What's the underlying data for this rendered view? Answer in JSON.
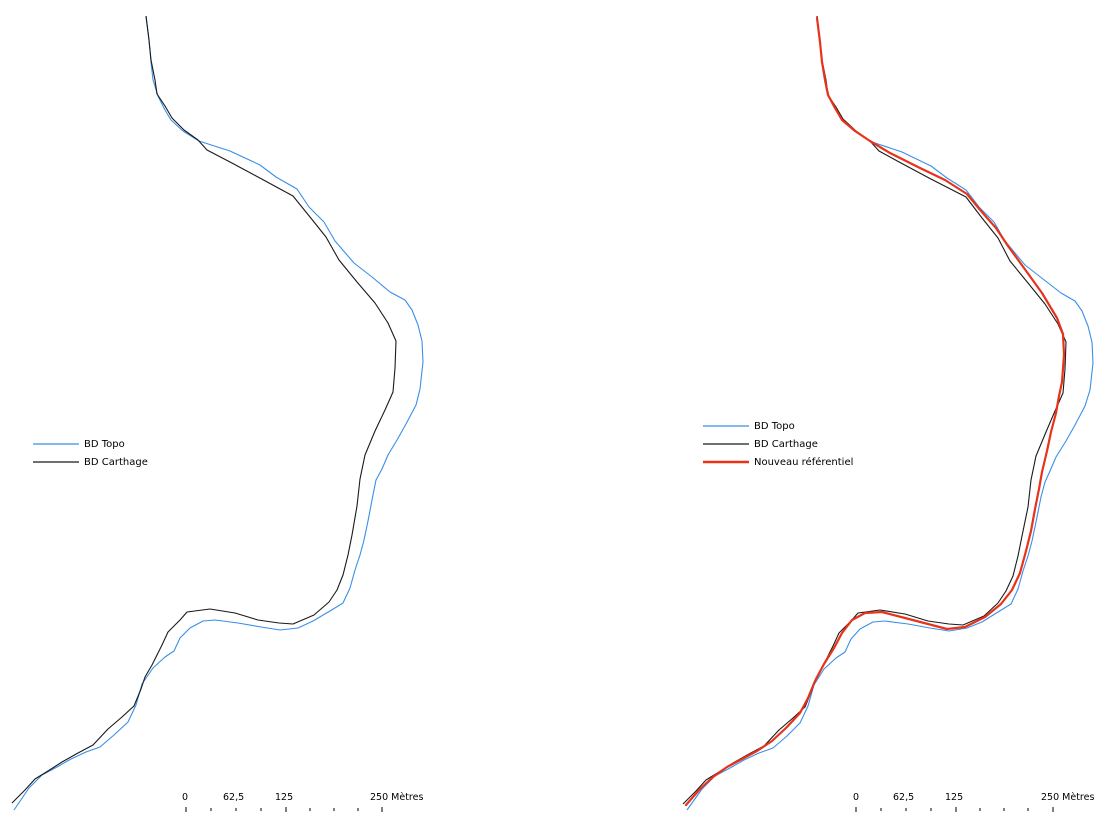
{
  "colors": {
    "bd_topo": "#3a8fe8",
    "bd_carthage": "#1a1a1a",
    "nouveau_referentiel": "#e8321a",
    "background": "#ffffff"
  },
  "panels": [
    {
      "legend": [
        {
          "label": "BD Topo",
          "color_key": "bd_topo"
        },
        {
          "label": "BD Carthage",
          "color_key": "bd_carthage"
        }
      ],
      "scale_bar": {
        "labels": [
          "0",
          "62,5",
          "125",
          "250 Mètres"
        ]
      }
    },
    {
      "legend": [
        {
          "label": "BD Topo",
          "color_key": "bd_topo"
        },
        {
          "label": "BD Carthage",
          "color_key": "bd_carthage"
        },
        {
          "label": "Nouveau référentiel",
          "color_key": "nouveau_referentiel"
        }
      ],
      "scale_bar": {
        "labels": [
          "0",
          "62,5",
          "125",
          "250 Mètres"
        ]
      }
    }
  ]
}
